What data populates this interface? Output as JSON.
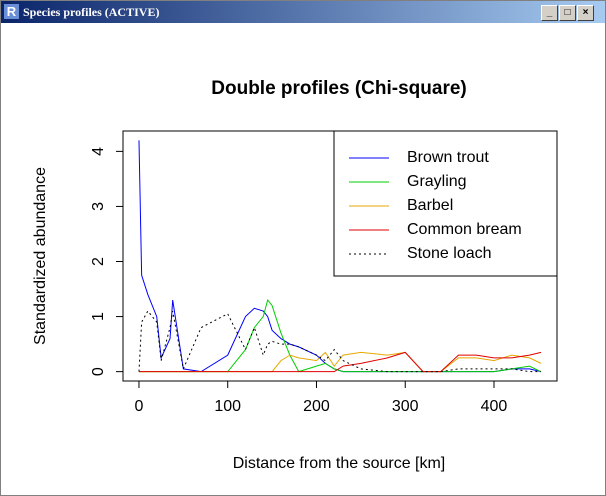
{
  "window": {
    "title": "Species profiles (ACTIVE)"
  },
  "chart_data": {
    "type": "line",
    "title": "Double profiles (Chi-square)",
    "x_label": "Distance from the source [km]",
    "y_label": "Standardized abundance",
    "x": [
      0,
      3,
      10,
      20,
      25,
      35,
      38,
      50,
      70,
      100,
      120,
      130,
      140,
      145,
      150,
      160,
      170,
      180,
      200,
      210,
      220,
      230,
      250,
      280,
      300,
      320,
      340,
      360,
      380,
      400,
      420,
      440,
      453
    ],
    "series": [
      {
        "name": "Brown trout",
        "color": "#0000ff",
        "line_style": "solid",
        "values": [
          4.2,
          1.75,
          1.4,
          1.0,
          0.25,
          0.6,
          1.3,
          0.05,
          0,
          0.3,
          1.0,
          1.15,
          1.1,
          1.0,
          0.75,
          0.6,
          0.5,
          0.45,
          0.3,
          0.15,
          0.05,
          0,
          0,
          0,
          0,
          0,
          0,
          0,
          0,
          0,
          0.05,
          0.05,
          0
        ]
      },
      {
        "name": "Grayling",
        "color": "#00cd00",
        "line_style": "solid",
        "values": [
          0,
          0,
          0,
          0,
          0,
          0,
          0,
          0,
          0,
          0,
          0.4,
          0.8,
          1.0,
          1.3,
          1.2,
          0.7,
          0.3,
          0,
          0.1,
          0.15,
          0.05,
          0,
          0,
          0,
          0,
          0,
          0,
          0,
          0,
          0,
          0.05,
          0.1,
          0
        ]
      },
      {
        "name": "Barbel",
        "color": "#e6a800",
        "line_style": "solid",
        "values": [
          0,
          0,
          0,
          0,
          0,
          0,
          0,
          0,
          0,
          0,
          0,
          0,
          0,
          0,
          0,
          0.2,
          0.3,
          0.25,
          0.2,
          0.35,
          0.1,
          0.3,
          0.35,
          0.3,
          0.35,
          0,
          0,
          0.25,
          0.25,
          0.2,
          0.3,
          0.25,
          0.15
        ]
      },
      {
        "name": "Common bream",
        "color": "#e00000",
        "line_style": "solid",
        "values": [
          0,
          0,
          0,
          0,
          0,
          0,
          0,
          0,
          0,
          0,
          0,
          0,
          0,
          0,
          0,
          0,
          0,
          0,
          0,
          0,
          0,
          0.1,
          0.15,
          0.25,
          0.35,
          0,
          0,
          0.3,
          0.3,
          0.25,
          0.25,
          0.3,
          0.35
        ]
      },
      {
        "name": "Stone loach",
        "color": "#000000",
        "line_style": "dotted",
        "values": [
          0,
          0.9,
          1.1,
          0.9,
          0.2,
          0.8,
          1.1,
          0.05,
          0.8,
          1.05,
          0.4,
          0.8,
          0.3,
          0.5,
          0.55,
          0.5,
          0.5,
          0.45,
          0.3,
          0.2,
          0.4,
          0.2,
          0.05,
          0,
          0,
          0,
          0,
          0.05,
          0.05,
          0.05,
          0.05,
          0,
          0
        ]
      }
    ],
    "xlim": [
      -18,
      471
    ],
    "ylim": [
      -0.17,
      4.37
    ],
    "xticks": [
      0,
      100,
      200,
      300,
      400
    ],
    "yticks": [
      0,
      1,
      2,
      3,
      4
    ],
    "legend": "top-right",
    "grid": false
  }
}
